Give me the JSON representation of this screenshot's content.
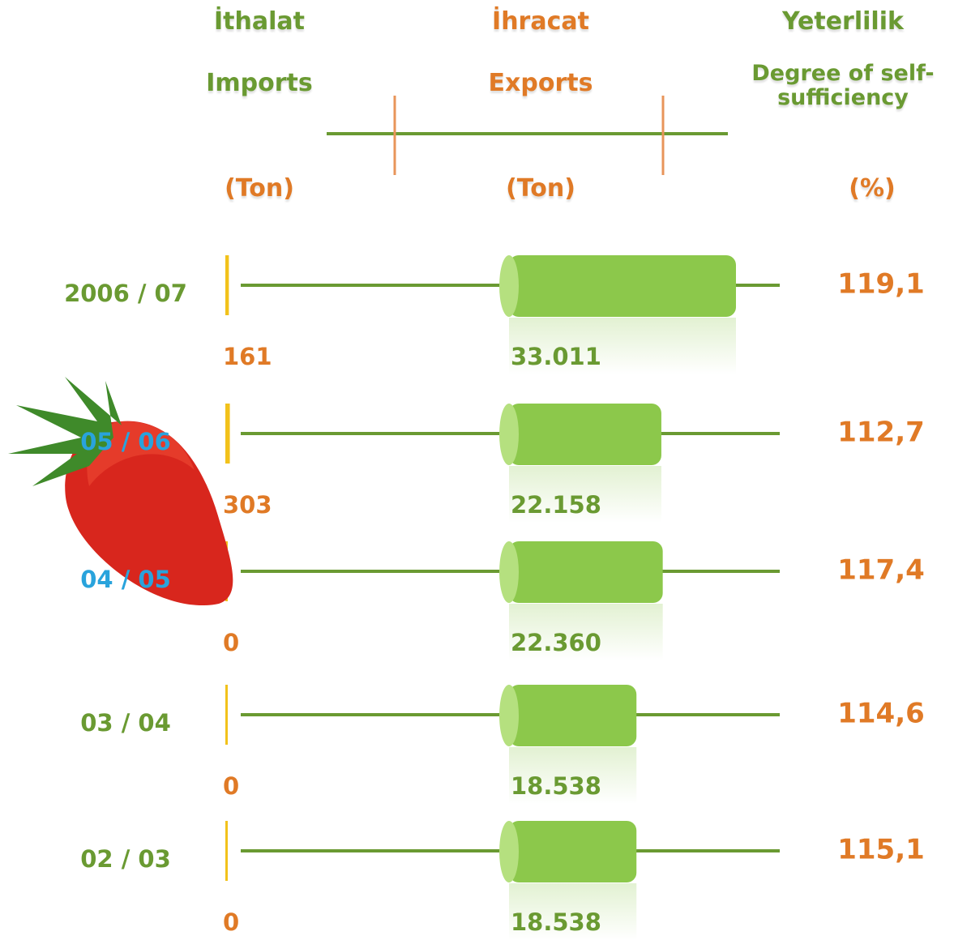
{
  "chart_data": {
    "type": "bar",
    "categories": [
      "2006 / 07",
      "05 / 06",
      "04 / 05",
      "03 / 04",
      "02 / 03"
    ],
    "category_colors": [
      "#6a9a32",
      "#29a3dc",
      "#29a3dc",
      "#6a9a32",
      "#6a9a32"
    ],
    "series": [
      {
        "name": "Imports",
        "title": "İthalat",
        "unit": "(Ton)",
        "color": "#f2c21b",
        "label_color": "#e07a26",
        "values": [
          161,
          303,
          0,
          0,
          0
        ]
      },
      {
        "name": "Exports",
        "title": "İhracat",
        "unit": "(Ton)",
        "color": "#8cc84b",
        "label_color": "#6a9a32",
        "values": [
          33011,
          22158,
          22360,
          18538,
          18538
        ],
        "value_labels": [
          "33.011",
          "22.158",
          "22.360",
          "18.538",
          "18.538"
        ]
      },
      {
        "name": "Degree of self-sufficiency",
        "title": "Yeterlilik",
        "unit": "(%)",
        "color": "#e07a26",
        "values": [
          119.1,
          112.7,
          117.4,
          114.6,
          115.1
        ],
        "value_labels": [
          "119,1",
          "112,7",
          "117,4",
          "114,6",
          "115,1"
        ]
      }
    ]
  }
}
